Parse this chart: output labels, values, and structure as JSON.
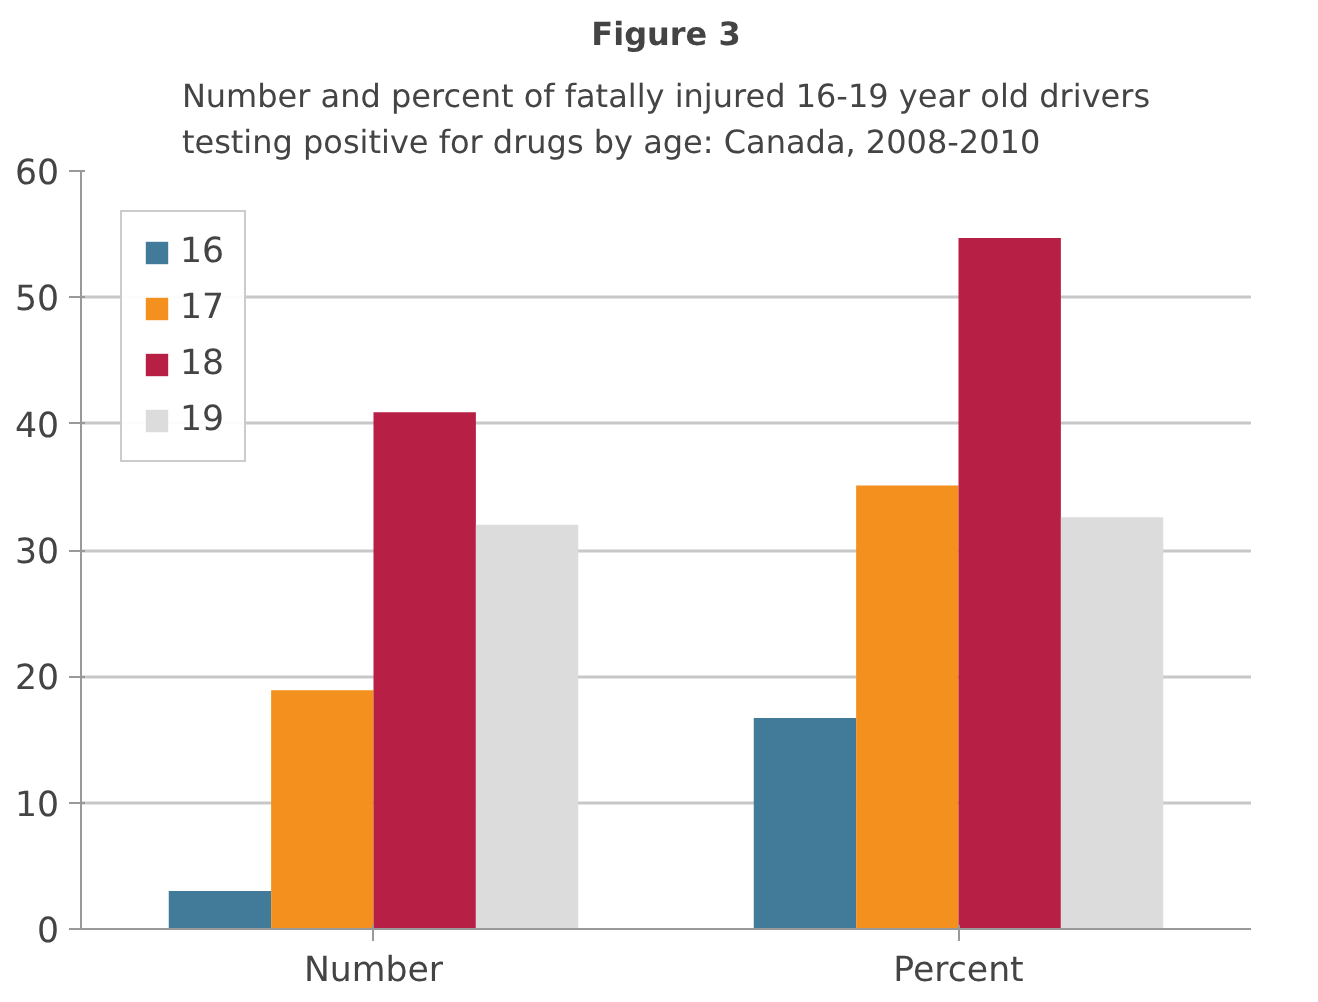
{
  "chart_data": {
    "type": "bar",
    "title": "Figure 3",
    "subtitle": "Number and percent of fatally injured 16-19 year old drivers\ntesting positive for drugs by age: Canada, 2008-2010",
    "categories": [
      "Number",
      "Percent"
    ],
    "series": [
      {
        "name": "16",
        "color": "#427a9a",
        "values": [
          3,
          16.7
        ]
      },
      {
        "name": "17",
        "color": "#f4901e",
        "values": [
          18.9,
          35.1
        ]
      },
      {
        "name": "18",
        "color": "#b71f44",
        "values": [
          40.9,
          54.7
        ]
      },
      {
        "name": "19",
        "color": "#dcdcdc",
        "values": [
          32,
          32.6
        ]
      }
    ],
    "ylim": [
      0,
      60
    ],
    "yticks": [
      0,
      10,
      20,
      30,
      40,
      50,
      60
    ],
    "grid": "y",
    "legend": "top left"
  }
}
